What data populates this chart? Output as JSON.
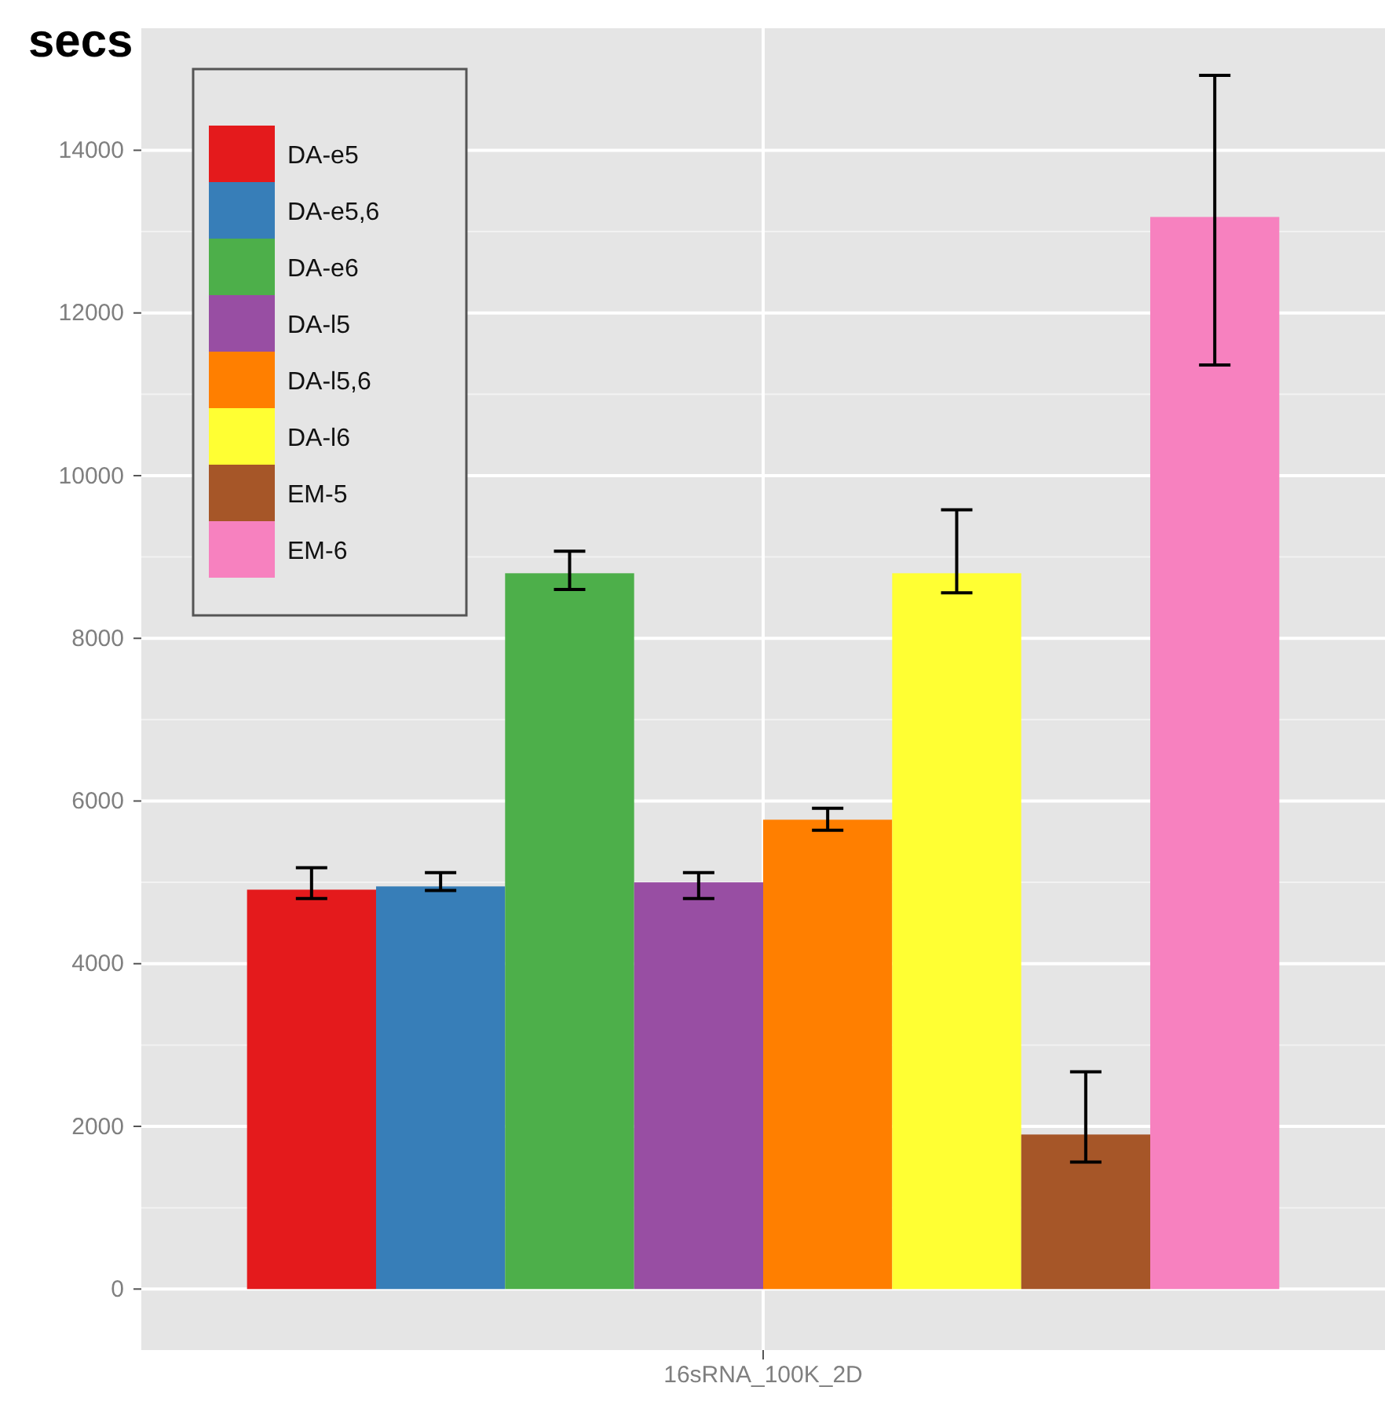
{
  "chart_data": {
    "type": "bar",
    "ylabel": "secs",
    "categories": [
      "16sRNA_100K_2D"
    ],
    "ylim": [
      -750,
      15500
    ],
    "yticks": [
      0,
      2000,
      4000,
      6000,
      8000,
      10000,
      12000,
      14000
    ],
    "grid": true,
    "legend": "top left",
    "series": [
      {
        "name": "DA-e5",
        "color": "#e41a1c",
        "values": [
          4910
        ],
        "errors": [
          [
            4800,
            5180
          ]
        ]
      },
      {
        "name": "DA-e5,6",
        "color": "#377eb8",
        "values": [
          4950
        ],
        "errors": [
          [
            4900,
            5120
          ]
        ]
      },
      {
        "name": "DA-e6",
        "color": "#4daf4a",
        "values": [
          8800
        ],
        "errors": [
          [
            8600,
            9070
          ]
        ]
      },
      {
        "name": "DA-l5",
        "color": "#984ea3",
        "values": [
          5000
        ],
        "errors": [
          [
            4800,
            5120
          ]
        ]
      },
      {
        "name": "DA-l5,6",
        "color": "#ff7f00",
        "values": [
          5770
        ],
        "errors": [
          [
            5640,
            5910
          ]
        ]
      },
      {
        "name": "DA-l6",
        "color": "#ffff33",
        "values": [
          8800
        ],
        "errors": [
          [
            8560,
            9580
          ]
        ]
      },
      {
        "name": "EM-5",
        "color": "#a65628",
        "values": [
          1900
        ],
        "errors": [
          [
            1560,
            2670
          ]
        ]
      },
      {
        "name": "EM-6",
        "color": "#f781bf",
        "values": [
          13180
        ],
        "errors": [
          [
            11360,
            14920
          ]
        ]
      }
    ]
  }
}
